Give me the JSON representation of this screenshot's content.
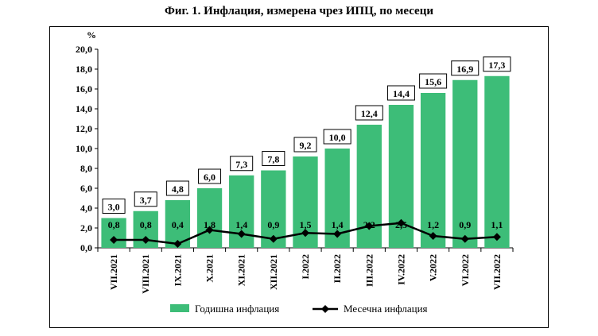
{
  "chart_data": {
    "type": "bar",
    "title": "Фиг. 1. Инфлация, измерена чрез ИПЦ, по месеци",
    "ylabel": "%",
    "ylim": [
      0,
      20
    ],
    "yticks": [
      "0,0",
      "2,0",
      "4,0",
      "6,0",
      "8,0",
      "10,0",
      "12,0",
      "14,0",
      "16,0",
      "18,0",
      "20,0"
    ],
    "categories": [
      "VII.2021",
      "VIII.2021",
      "IX.2021",
      "X.2021",
      "XI.2021",
      "XII.2021",
      "I.2022",
      "II.2022",
      "III.2022",
      "IV.2022",
      "V.2022",
      "VI.2022",
      "VII.2022"
    ],
    "series": [
      {
        "name": "Годишна инфлация",
        "kind": "bar",
        "color": "#3dbd78",
        "values": [
          3.0,
          3.7,
          4.8,
          6.0,
          7.3,
          7.8,
          9.2,
          10.0,
          12.4,
          14.4,
          15.6,
          16.9,
          17.3
        ],
        "labels": [
          "3,0",
          "3,7",
          "4,8",
          "6,0",
          "7,3",
          "7,8",
          "9,2",
          "10,0",
          "12,4",
          "14,4",
          "15,6",
          "16,9",
          "17,3"
        ]
      },
      {
        "name": "Месечна инфлация",
        "kind": "line",
        "color": "#000000",
        "values": [
          0.8,
          0.8,
          0.4,
          1.8,
          1.4,
          0.9,
          1.5,
          1.4,
          2.2,
          2.5,
          1.2,
          0.9,
          1.1
        ],
        "labels": [
          "0,8",
          "0,8",
          "0,4",
          "1,8",
          "1,4",
          "0,9",
          "1,5",
          "1,4",
          "2,2",
          "2,5",
          "1,2",
          "0,9",
          "1,1"
        ]
      }
    ],
    "grid": false,
    "legend": "bottom"
  }
}
